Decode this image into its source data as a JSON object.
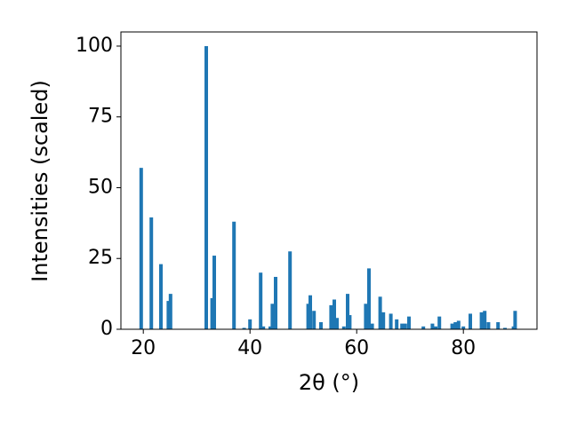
{
  "chart_data": {
    "type": "bar",
    "xlabel": "2θ (°)",
    "ylabel": "Intensities (scaled)",
    "color": "#1f77b4",
    "x": [
      19.6,
      21.5,
      23.3,
      24.7,
      25.1,
      31.8,
      32.9,
      33.3,
      37.0,
      38.9,
      40.0,
      42.0,
      42.5,
      43.8,
      44.2,
      44.8,
      47.5,
      50.9,
      51.3,
      52.0,
      53.3,
      55.2,
      55.8,
      56.3,
      57.6,
      58.3,
      58.7,
      61.7,
      62.3,
      62.9,
      64.4,
      65.0,
      66.4,
      67.5,
      68.5,
      69.1,
      69.8,
      72.5,
      74.2,
      74.8,
      75.5,
      77.9,
      78.5,
      79.1,
      80.0,
      81.3,
      83.4,
      84.0,
      84.7,
      86.5,
      87.8,
      89.4,
      89.7
    ],
    "values": [
      57,
      39.5,
      23,
      10,
      12.5,
      100,
      11,
      26,
      38,
      0.5,
      3.5,
      20,
      1,
      1,
      9,
      18.5,
      27.5,
      9,
      12,
      6.5,
      2.5,
      8.5,
      10.5,
      4,
      1,
      12.5,
      5,
      9,
      21.5,
      2,
      11.5,
      6,
      5.5,
      3.5,
      2,
      2,
      4.5,
      1,
      2,
      1,
      4.5,
      2,
      2.5,
      3,
      1,
      5.5,
      6,
      6.5,
      2.5,
      2.5,
      0.5,
      1,
      6.5
    ],
    "xlim": [
      15.8,
      93.8
    ],
    "ylim": [
      0,
      105
    ],
    "xticks": [
      20,
      40,
      60,
      80
    ],
    "yticks": [
      0,
      25,
      50,
      75,
      100
    ]
  }
}
